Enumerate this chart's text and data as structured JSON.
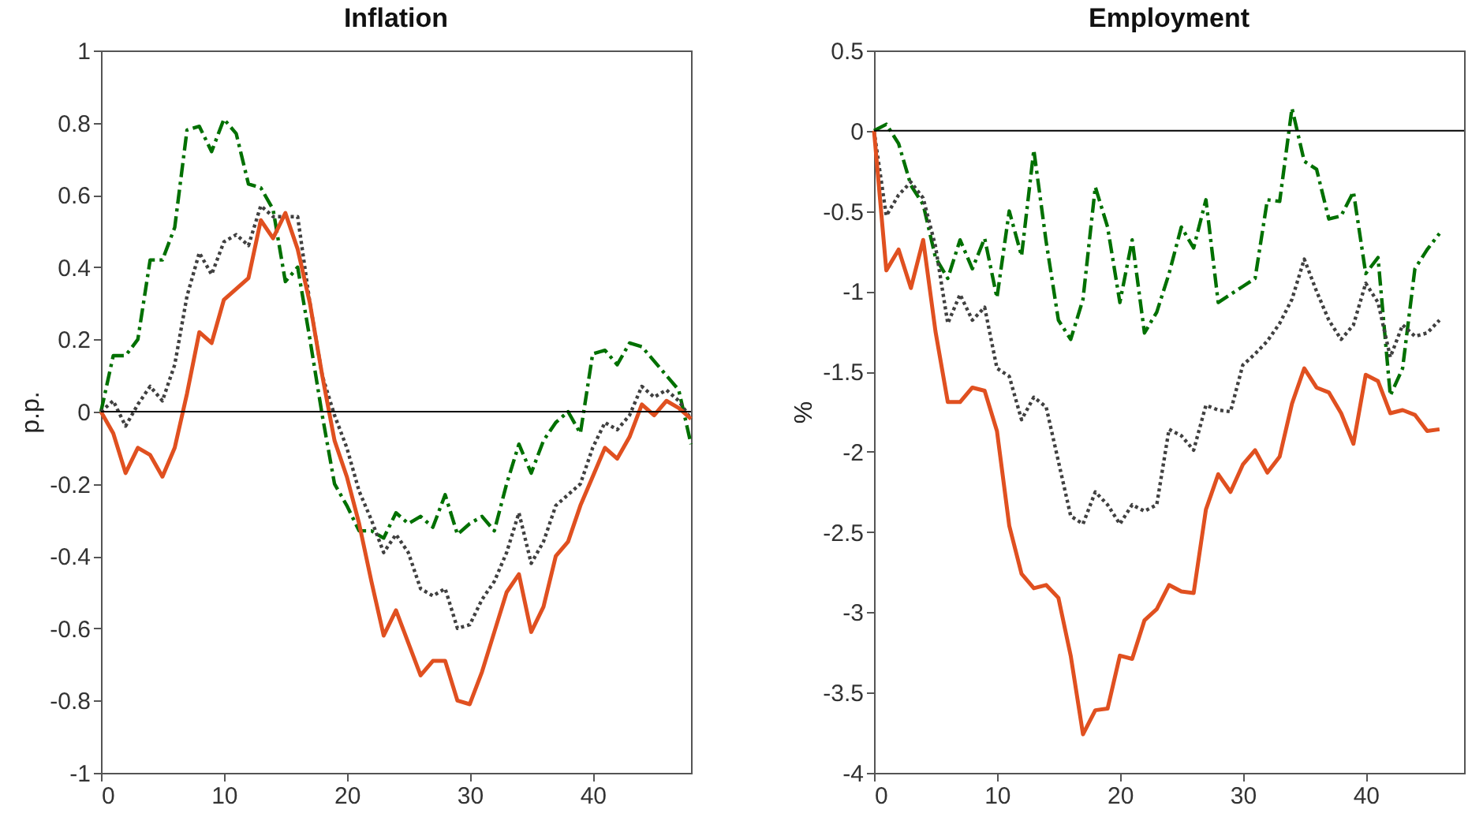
{
  "chart_data": [
    {
      "type": "line",
      "title": "Inflation",
      "ylabel": "p.p.",
      "x": [
        0,
        1,
        2,
        3,
        4,
        5,
        6,
        7,
        8,
        9,
        10,
        11,
        12,
        13,
        14,
        15,
        16,
        17,
        18,
        19,
        20,
        21,
        22,
        23,
        24,
        25,
        26,
        27,
        28,
        29,
        30,
        31,
        32,
        33,
        34,
        35,
        36,
        37,
        38,
        39,
        40,
        41,
        42,
        43,
        44,
        45,
        46,
        47,
        48
      ],
      "xlim": [
        0,
        48
      ],
      "xticks": [
        0,
        10,
        20,
        30,
        40
      ],
      "ylim": [
        -1,
        1
      ],
      "yticks": [
        -1,
        -0.8,
        -0.6,
        -0.4,
        -0.2,
        0,
        0.2,
        0.4,
        0.6,
        0.8,
        1
      ],
      "series": [
        {
          "color": "#007000",
          "line_style": "dashed",
          "values": [
            0,
            0.155,
            0.155,
            0.2,
            0.42,
            0.42,
            0.51,
            0.78,
            0.79,
            0.72,
            0.81,
            0.77,
            0.63,
            0.62,
            0.56,
            0.36,
            0.4,
            0.2,
            -0.01,
            -0.2,
            -0.26,
            -0.33,
            -0.33,
            -0.35,
            -0.28,
            -0.31,
            -0.29,
            -0.32,
            -0.23,
            -0.34,
            -0.31,
            -0.29,
            -0.33,
            -0.2,
            -0.09,
            -0.17,
            -0.08,
            -0.03,
            0,
            -0.06,
            0.16,
            0.17,
            0.13,
            0.19,
            0.18,
            0.14,
            0.1,
            0.06,
            -0.09
          ]
        },
        {
          "color": "#404040",
          "line_style": "dotted",
          "values": [
            0,
            0.03,
            -0.04,
            0.02,
            0.07,
            0.03,
            0.13,
            0.32,
            0.44,
            0.38,
            0.47,
            0.49,
            0.46,
            0.57,
            0.54,
            0.54,
            0.54,
            0.3,
            0.1,
            -0.01,
            -0.1,
            -0.22,
            -0.3,
            -0.39,
            -0.34,
            -0.39,
            -0.49,
            -0.51,
            -0.49,
            -0.6,
            -0.59,
            -0.52,
            -0.47,
            -0.39,
            -0.28,
            -0.42,
            -0.36,
            -0.26,
            -0.23,
            -0.2,
            -0.1,
            -0.03,
            -0.05,
            -0.01,
            0.07,
            0.04,
            0.06,
            0.03,
            -0.02
          ]
        },
        {
          "color": "#e05020",
          "line_style": "solid",
          "values": [
            0,
            -0.06,
            -0.17,
            -0.1,
            -0.12,
            -0.18,
            -0.1,
            0.05,
            0.22,
            0.19,
            0.31,
            0.34,
            0.37,
            0.53,
            0.48,
            0.55,
            0.45,
            0.3,
            0.1,
            -0.08,
            -0.18,
            -0.31,
            -0.47,
            -0.62,
            -0.55,
            -0.64,
            -0.73,
            -0.69,
            -0.69,
            -0.8,
            -0.81,
            -0.72,
            -0.61,
            -0.5,
            -0.45,
            -0.61,
            -0.54,
            -0.4,
            -0.36,
            -0.26,
            -0.18,
            -0.1,
            -0.13,
            -0.07,
            0.02,
            -0.01,
            0.03,
            0.01,
            -0.02
          ]
        }
      ],
      "ref_lines": [
        {
          "axis": "y",
          "value": 0,
          "color": "#000000"
        }
      ]
    },
    {
      "type": "line",
      "title": "Employment",
      "ylabel": "%",
      "x": [
        0,
        1,
        2,
        3,
        4,
        5,
        6,
        7,
        8,
        9,
        10,
        11,
        12,
        13,
        14,
        15,
        16,
        17,
        18,
        19,
        20,
        21,
        22,
        23,
        24,
        25,
        26,
        27,
        28,
        29,
        30,
        31,
        32,
        33,
        34,
        35,
        36,
        37,
        38,
        39,
        40,
        41,
        42,
        43,
        44,
        45,
        46
      ],
      "xlim": [
        0,
        48
      ],
      "xticks": [
        0,
        10,
        20,
        30,
        40
      ],
      "ylim": [
        -4,
        0.5
      ],
      "yticks": [
        -4,
        -3.5,
        -3,
        -2.5,
        -2,
        -1.5,
        -1,
        -0.5,
        0,
        0.5
      ],
      "series": [
        {
          "color": "#007000",
          "line_style": "dashed",
          "values": [
            0,
            0.04,
            -0.08,
            -0.34,
            -0.46,
            -0.79,
            -0.92,
            -0.68,
            -0.86,
            -0.67,
            -1.04,
            -0.5,
            -0.78,
            -0.12,
            -0.69,
            -1.18,
            -1.3,
            -1.05,
            -0.35,
            -0.6,
            -1.07,
            -0.68,
            -1.26,
            -1.13,
            -0.89,
            -0.6,
            -0.73,
            -0.43,
            -1.07,
            -1.02,
            -0.97,
            -0.92,
            -0.43,
            -0.44,
            0.14,
            -0.19,
            -0.24,
            -0.55,
            -0.53,
            -0.38,
            -0.89,
            -0.79,
            -1.65,
            -1.48,
            -0.86,
            -0.74,
            -0.64
          ]
        },
        {
          "color": "#404040",
          "line_style": "dotted",
          "values": [
            0,
            -0.53,
            -0.4,
            -0.32,
            -0.42,
            -0.72,
            -1.2,
            -1.02,
            -1.18,
            -1.1,
            -1.48,
            -1.53,
            -1.8,
            -1.66,
            -1.72,
            -2.06,
            -2.4,
            -2.45,
            -2.25,
            -2.33,
            -2.45,
            -2.33,
            -2.37,
            -2.33,
            -1.86,
            -1.9,
            -1.99,
            -1.71,
            -1.74,
            -1.75,
            -1.46,
            -1.39,
            -1.31,
            -1.2,
            -1.05,
            -0.8,
            -1,
            -1.18,
            -1.3,
            -1.21,
            -0.95,
            -1.07,
            -1.41,
            -1.21,
            -1.28,
            -1.26,
            -1.18
          ]
        },
        {
          "color": "#e05020",
          "line_style": "solid",
          "values": [
            0,
            -0.87,
            -0.74,
            -0.98,
            -0.68,
            -1.25,
            -1.69,
            -1.69,
            -1.6,
            -1.62,
            -1.87,
            -2.46,
            -2.76,
            -2.85,
            -2.83,
            -2.91,
            -3.27,
            -3.76,
            -3.61,
            -3.6,
            -3.27,
            -3.29,
            -3.05,
            -2.98,
            -2.83,
            -2.87,
            -2.88,
            -2.36,
            -2.14,
            -2.25,
            -2.08,
            -1.99,
            -2.13,
            -2.03,
            -1.7,
            -1.48,
            -1.6,
            -1.63,
            -1.76,
            -1.95,
            -1.52,
            -1.56,
            -1.76,
            -1.74,
            -1.77,
            -1.87,
            -1.86
          ]
        }
      ],
      "ref_lines": [
        {
          "axis": "y",
          "value": 0,
          "color": "#000000"
        }
      ]
    }
  ]
}
